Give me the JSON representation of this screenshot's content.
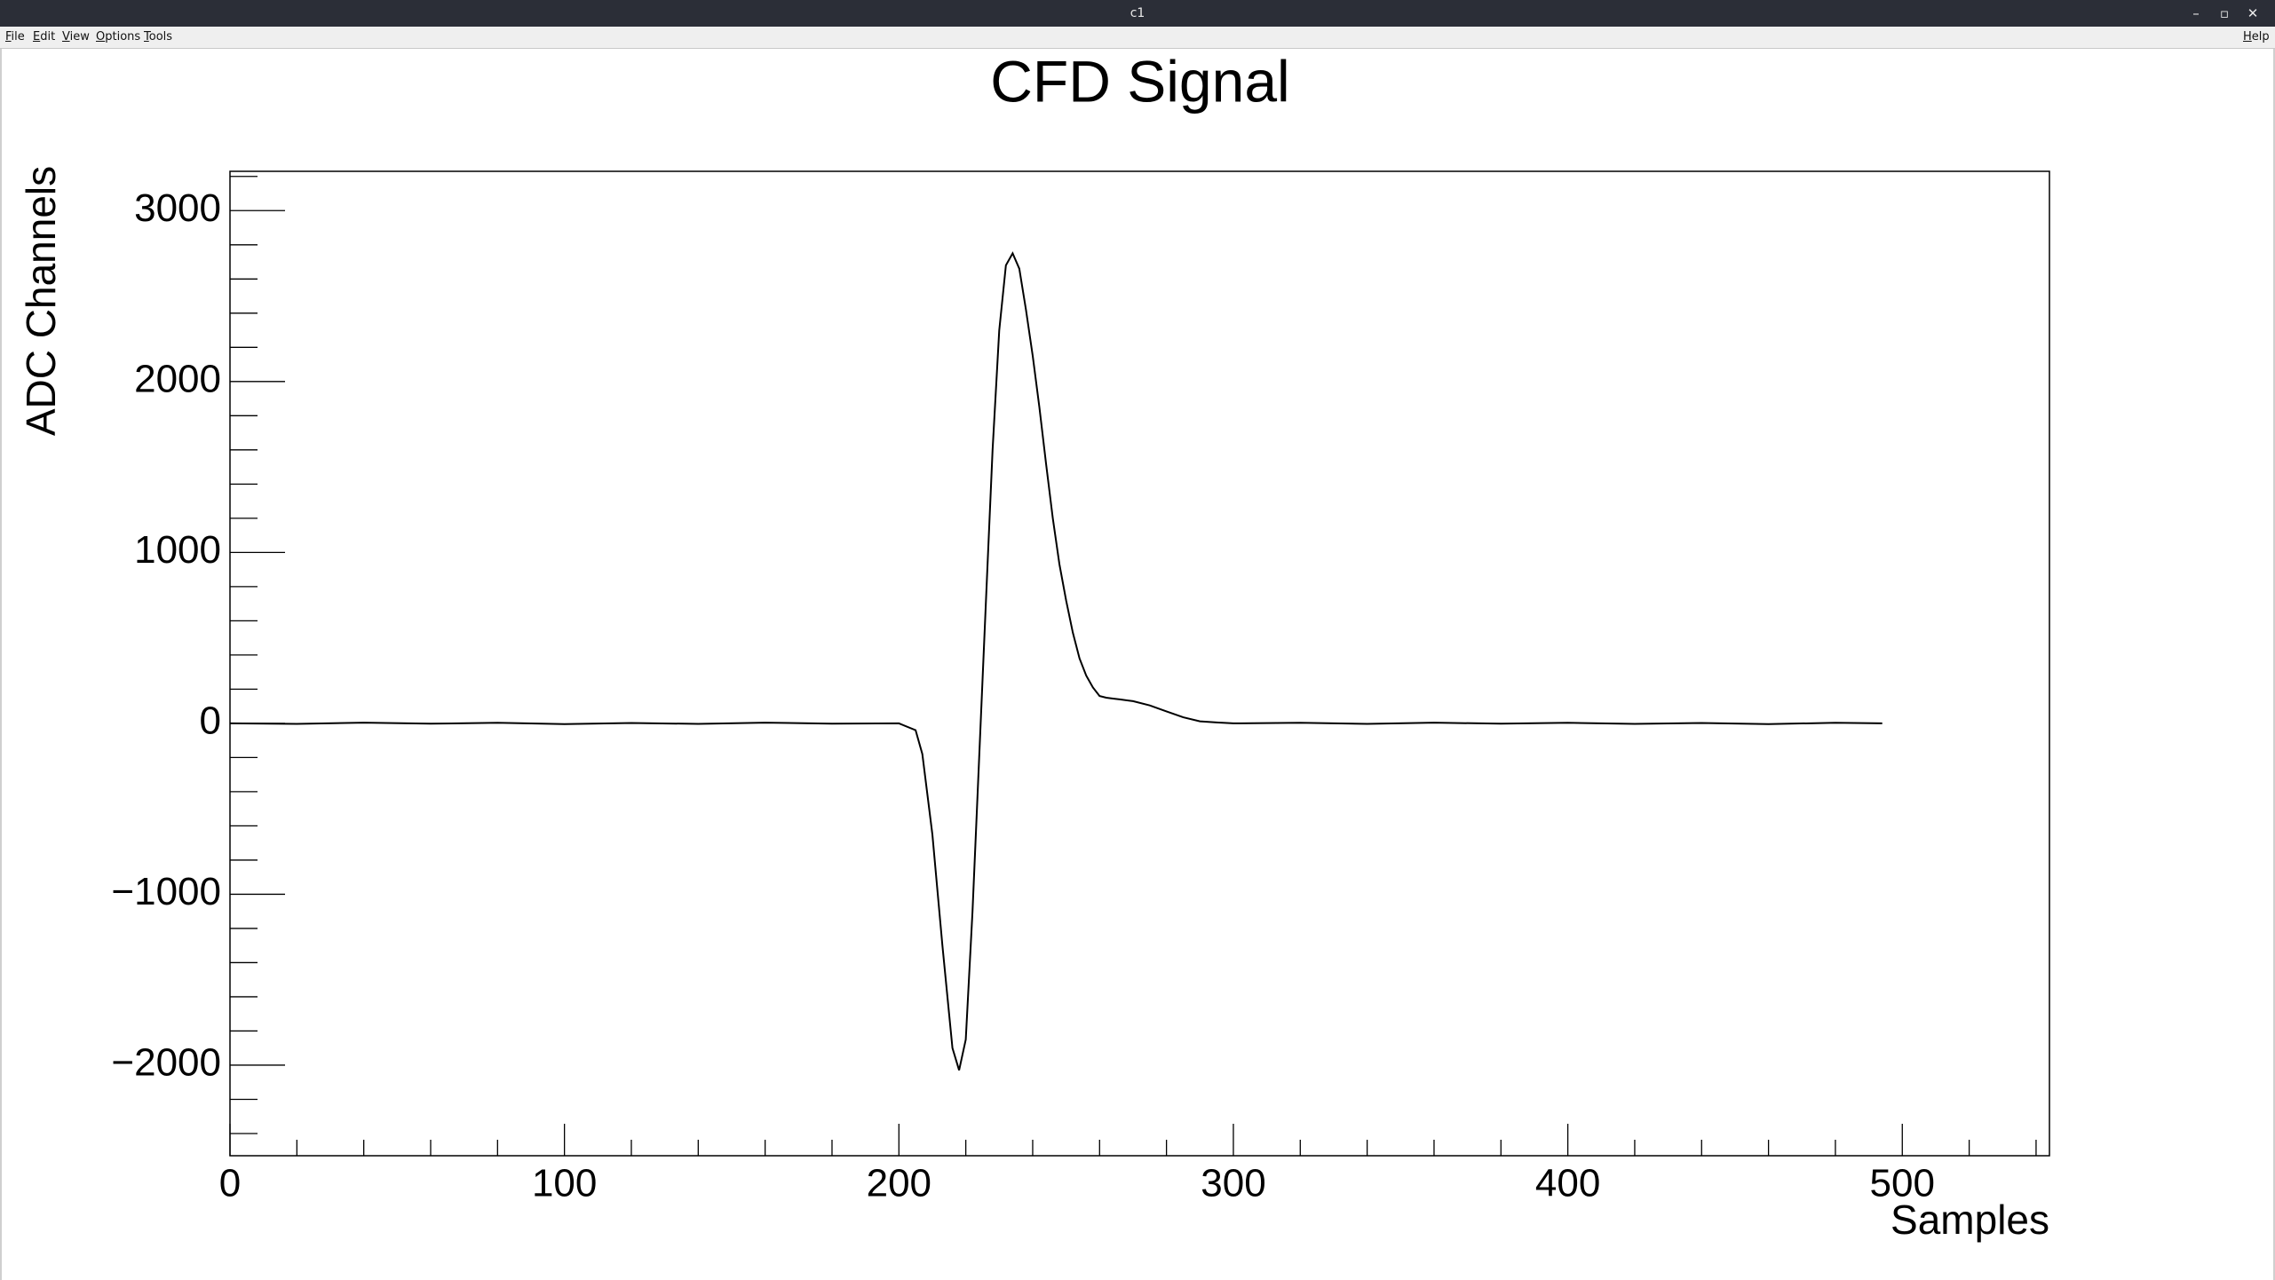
{
  "window": {
    "title": "c1",
    "controls": {
      "minimize": "–",
      "restore": "▫",
      "close": "✕"
    }
  },
  "menubar": {
    "items": [
      {
        "label": "File",
        "accel": "F",
        "rest": "ile"
      },
      {
        "label": "Edit",
        "accel": "E",
        "rest": "dit"
      },
      {
        "label": "View",
        "accel": "V",
        "rest": "iew"
      },
      {
        "label": "Options",
        "accel": "O",
        "rest": "ptions"
      },
      {
        "label": "Tools",
        "accel": "T",
        "rest": "ools"
      }
    ],
    "help": {
      "label": "Help",
      "accel": "H",
      "rest": "elp"
    }
  },
  "chart_data": {
    "type": "line",
    "title": "CFD Signal",
    "xlabel": "Samples",
    "ylabel": "ADC Channels",
    "xlim": [
      0,
      544
    ],
    "ylim": [
      -2530,
      3230
    ],
    "x_major_ticks": [
      0,
      100,
      200,
      300,
      400,
      500
    ],
    "x_tick_labels": [
      "0",
      "100",
      "200",
      "300",
      "400",
      "500"
    ],
    "y_major_ticks": [
      -2000,
      -1000,
      0,
      1000,
      2000,
      3000
    ],
    "y_tick_labels": [
      "−2000",
      "−1000",
      "0",
      "1000",
      "2000",
      "3000"
    ],
    "grid": false,
    "legend": "none",
    "line_color": "#000000",
    "series": [
      {
        "x": [
          0,
          20,
          40,
          60,
          80,
          100,
          120,
          140,
          160,
          180,
          200,
          205,
          207,
          210,
          213,
          216,
          218,
          220,
          222,
          224,
          226,
          228,
          230,
          232,
          234,
          236,
          238,
          240,
          242,
          244,
          246,
          248,
          250,
          252,
          254,
          256,
          258,
          260,
          262,
          264,
          266,
          270,
          275,
          280,
          285,
          290,
          295,
          300,
          320,
          340,
          360,
          380,
          400,
          420,
          440,
          460,
          480,
          494
        ],
        "y": [
          0,
          -3,
          4,
          -2,
          3,
          -5,
          2,
          -3,
          4,
          -2,
          0,
          -40,
          -180,
          -650,
          -1300,
          -1900,
          -2030,
          -1850,
          -1100,
          -200,
          700,
          1600,
          2300,
          2680,
          2750,
          2660,
          2420,
          2150,
          1850,
          1520,
          1200,
          930,
          720,
          530,
          380,
          280,
          210,
          160,
          150,
          145,
          140,
          130,
          105,
          70,
          35,
          12,
          5,
          0,
          3,
          -3,
          4,
          -2,
          3,
          -3,
          2,
          -4,
          3,
          0
        ]
      }
    ]
  }
}
